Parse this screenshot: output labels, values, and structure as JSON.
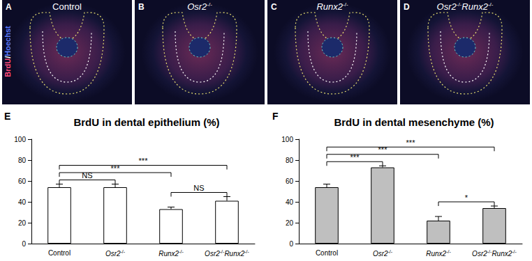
{
  "image_panels": {
    "stain_label": [
      "BrdU",
      "/",
      "Hoechst"
    ],
    "panels": [
      {
        "letter": "A",
        "title": "Control"
      },
      {
        "letter": "B",
        "title": "Osr2-/-"
      },
      {
        "letter": "C",
        "title": "Runx2-/-"
      },
      {
        "letter": "D",
        "title": "Osr2-/-Runx2-/-"
      }
    ]
  },
  "chart_data": [
    {
      "type": "bar",
      "panel_label": "E",
      "title": "BrdU in dental epithelium (%)",
      "categories": [
        "Control",
        "Osr2-/-",
        "Runx2-/-",
        "Osr2-/-Runx2-/-"
      ],
      "values": [
        54,
        54,
        33,
        41
      ],
      "errors": [
        3,
        3,
        2,
        4
      ],
      "color": "#ffffff",
      "ylim": [
        0,
        100
      ],
      "yticks": [
        0,
        20,
        40,
        60,
        80,
        100
      ],
      "grid": false,
      "comparisons": [
        {
          "from": "Control",
          "to": "Osr2-/-",
          "label": "NS"
        },
        {
          "from": "Control",
          "to": "Runx2-/-",
          "label": "***"
        },
        {
          "from": "Control",
          "to": "Osr2-/-Runx2-/-",
          "label": "***"
        },
        {
          "from": "Runx2-/-",
          "to": "Osr2-/-Runx2-/-",
          "label": "NS"
        }
      ]
    },
    {
      "type": "bar",
      "panel_label": "F",
      "title": "BrdU in dental mesenchyme (%)",
      "categories": [
        "Control",
        "Osr2-/-",
        "Runx2-/-",
        "Osr2-/-Runx2-/-"
      ],
      "values": [
        54,
        73,
        22,
        34
      ],
      "errors": [
        3,
        1.5,
        4,
        2
      ],
      "color": "#bfbfbf",
      "ylim": [
        0,
        100
      ],
      "yticks": [
        0,
        20,
        40,
        60,
        80,
        100
      ],
      "grid": false,
      "comparisons": [
        {
          "from": "Control",
          "to": "Osr2-/-",
          "label": "***"
        },
        {
          "from": "Control",
          "to": "Runx2-/-",
          "label": "***"
        },
        {
          "from": "Control",
          "to": "Osr2-/-Runx2-/-",
          "label": "***"
        },
        {
          "from": "Runx2-/-",
          "to": "Osr2-/-Runx2-/-",
          "label": "*"
        }
      ]
    }
  ]
}
